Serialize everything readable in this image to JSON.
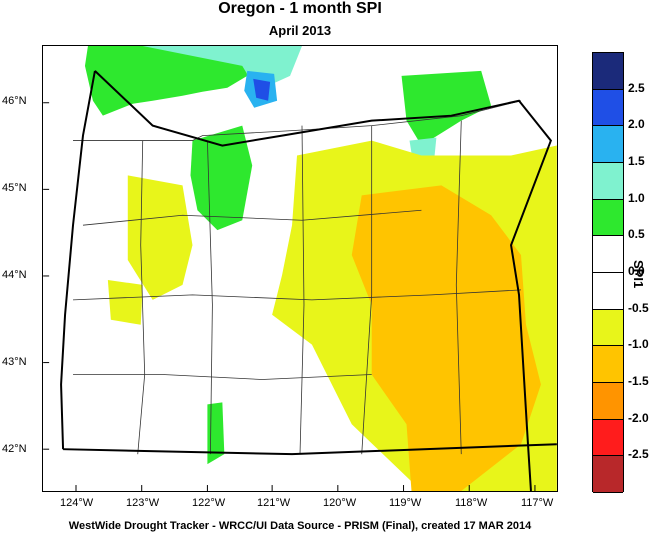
{
  "title": "Oregon - 1 month SPI",
  "subtitle": "April 2013",
  "footer": "WestWide Drought Tracker - WRCC/UI  Data Source - PRISM (Final), created 17 MAR 2014",
  "legend_title": "SPI1",
  "lat_labels": [
    "46°N",
    "45°N",
    "44°N",
    "43°N",
    "42°N"
  ],
  "lon_labels": [
    "124°W",
    "123°W",
    "122°W",
    "121°W",
    "120°W",
    "119°W",
    "118°W",
    "117°W"
  ],
  "legend": {
    "labels": [
      "2.5",
      "2.0",
      "1.5",
      "1.0",
      "0.5",
      "0.0",
      "-0.5",
      "-1.0",
      "-1.5",
      "-2.0",
      "-2.5"
    ],
    "colors": [
      "#1b2a7a",
      "#1f4fe6",
      "#29b2f0",
      "#7ff2cf",
      "#2ee82e",
      "#ffffff",
      "#ffffff",
      "#e8f51a",
      "#ffc400",
      "#ff9400",
      "#ff1c1c",
      "#b8282a"
    ]
  },
  "colors": {
    "wet_cyan": "#7ff2cf",
    "wet_blue": "#1f4fe6",
    "wet_light_blue": "#29b2f0",
    "wet_green": "#2ee82e",
    "dry_yellow": "#e8f51a",
    "dry_orange": "#ffc400"
  }
}
